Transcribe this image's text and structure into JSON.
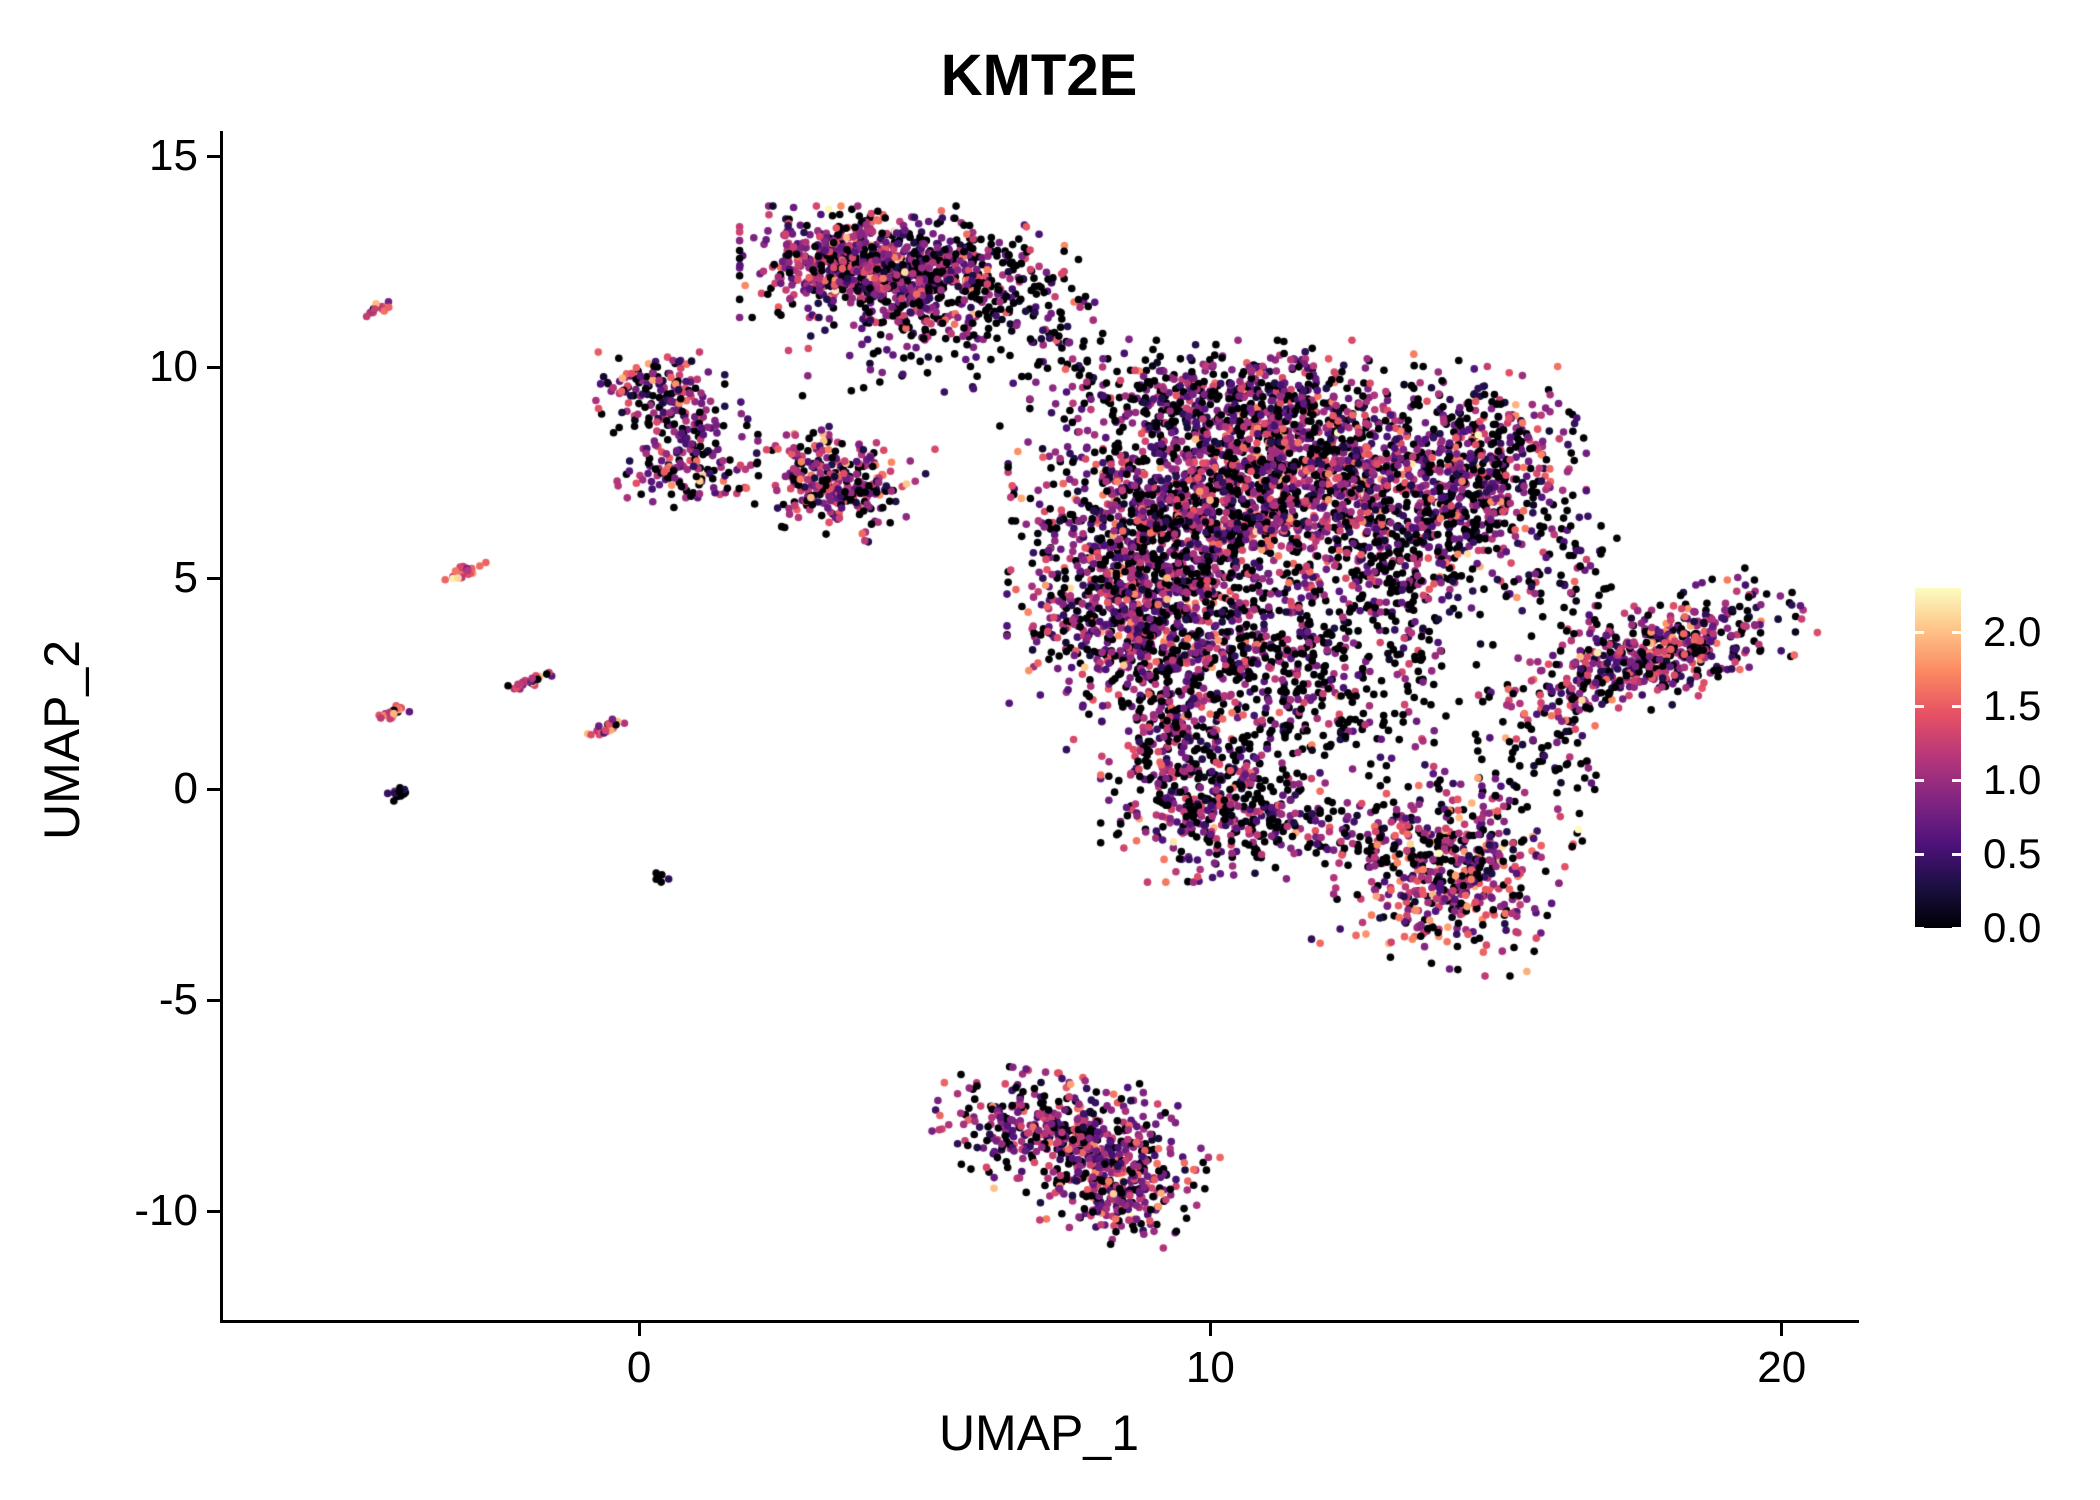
{
  "figure": {
    "background": "#ffffff",
    "axis_color": "#000000",
    "text_color": "#000000"
  },
  "chart_data": {
    "type": "scatter",
    "title": "KMT2E",
    "xlabel": "UMAP_1",
    "ylabel": "UMAP_2",
    "xlim": [
      -7.3,
      21.3
    ],
    "ylim": [
      -12.6,
      15.6
    ],
    "x_ticks": [
      0,
      10,
      20
    ],
    "y_ticks": [
      15,
      10,
      5,
      0,
      -5,
      -10
    ],
    "grid": false,
    "point_radius_px": 3.8,
    "seed": 20240711,
    "colorbar": {
      "position": "right",
      "tick_labels": [
        "2.0",
        "1.5",
        "1.0",
        "0.5",
        "0.0"
      ],
      "domain": [
        0,
        2.3
      ],
      "colormap": "magma",
      "stops": [
        "#000004",
        "#1c1044",
        "#4f127b",
        "#812581",
        "#b5367a",
        "#e55064",
        "#fb8761",
        "#fec287",
        "#fcfdbf"
      ]
    },
    "clusters": [
      {
        "name": "top-core",
        "n": 650,
        "cx": 3.8,
        "cy": 12.5,
        "sx": 0.85,
        "sy": 0.55,
        "rot": 0,
        "zero_frac": 0.22,
        "expr_mean": 1.0,
        "expr_sd": 0.45
      },
      {
        "name": "top-right",
        "n": 380,
        "cx": 5.4,
        "cy": 12.1,
        "sx": 0.85,
        "sy": 0.6,
        "rot": 0,
        "zero_frac": 0.4,
        "expr_mean": 0.85,
        "expr_sd": 0.4
      },
      {
        "name": "top-below-sparse",
        "n": 110,
        "cx": 4.6,
        "cy": 10.9,
        "sx": 0.9,
        "sy": 0.7,
        "rot": 0,
        "zero_frac": 0.5,
        "expr_mean": 0.8,
        "expr_sd": 0.4
      },
      {
        "name": "bridge-sparse",
        "n": 90,
        "cx": 7.2,
        "cy": 10.9,
        "sx": 0.8,
        "sy": 1.0,
        "rot": 0,
        "zero_frac": 0.6,
        "expr_mean": 0.7,
        "expr_sd": 0.4
      },
      {
        "name": "left-upper",
        "n": 140,
        "cx": 0.3,
        "cy": 9.4,
        "sx": 0.5,
        "sy": 0.4,
        "rot": 0,
        "zero_frac": 0.3,
        "expr_mean": 0.9,
        "expr_sd": 0.45
      },
      {
        "name": "left-upper2",
        "n": 60,
        "cx": 1.0,
        "cy": 8.6,
        "sx": 0.45,
        "sy": 0.4,
        "rot": 0,
        "zero_frac": 0.35,
        "expr_mean": 0.85,
        "expr_sd": 0.4
      },
      {
        "name": "left-lower",
        "n": 110,
        "cx": 0.8,
        "cy": 7.6,
        "sx": 0.5,
        "sy": 0.4,
        "rot": 0,
        "zero_frac": 0.3,
        "expr_mean": 0.95,
        "expr_sd": 0.45
      },
      {
        "name": "midleft-blob",
        "n": 300,
        "cx": 3.4,
        "cy": 7.3,
        "sx": 0.62,
        "sy": 0.55,
        "rot": -20,
        "zero_frac": 0.22,
        "expr_mean": 1.0,
        "expr_sd": 0.45
      },
      {
        "name": "main-core",
        "n": 1500,
        "cx": 11.6,
        "cy": 7.2,
        "sx": 1.45,
        "sy": 1.25,
        "rot": 0,
        "zero_frac": 0.3,
        "expr_mean": 0.95,
        "expr_sd": 0.45
      },
      {
        "name": "main-left",
        "n": 850,
        "cx": 9.1,
        "cy": 6.2,
        "sx": 1.1,
        "sy": 1.3,
        "rot": 0,
        "zero_frac": 0.35,
        "expr_mean": 0.9,
        "expr_sd": 0.45
      },
      {
        "name": "main-top",
        "n": 450,
        "cx": 10.2,
        "cy": 9.2,
        "sx": 1.4,
        "sy": 0.6,
        "rot": 0,
        "zero_frac": 0.4,
        "expr_mean": 0.85,
        "expr_sd": 0.4
      },
      {
        "name": "main-lowleft",
        "n": 520,
        "cx": 8.6,
        "cy": 4.2,
        "sx": 0.9,
        "sy": 0.9,
        "rot": 0,
        "zero_frac": 0.3,
        "expr_mean": 0.95,
        "expr_sd": 0.45
      },
      {
        "name": "main-lower",
        "n": 480,
        "cx": 10.6,
        "cy": 3.1,
        "sx": 1.3,
        "sy": 0.9,
        "rot": 0,
        "zero_frac": 0.45,
        "expr_mean": 0.8,
        "expr_sd": 0.4
      },
      {
        "name": "main-right-sparse",
        "n": 280,
        "cx": 13.7,
        "cy": 5.2,
        "sx": 0.8,
        "sy": 1.3,
        "rot": 0,
        "zero_frac": 0.55,
        "expr_mean": 0.75,
        "expr_sd": 0.4
      },
      {
        "name": "right-cluster",
        "n": 420,
        "cx": 14.9,
        "cy": 7.5,
        "sx": 0.7,
        "sy": 1.05,
        "rot": 0,
        "zero_frac": 0.4,
        "expr_mean": 0.85,
        "expr_sd": 0.45
      },
      {
        "name": "right-gap-sparse",
        "n": 70,
        "cx": 16.2,
        "cy": 5.2,
        "sx": 0.6,
        "sy": 0.8,
        "rot": 0,
        "zero_frac": 0.6,
        "expr_mean": 0.7,
        "expr_sd": 0.4
      },
      {
        "name": "far-right-band",
        "n": 560,
        "cx": 17.6,
        "cy": 3.1,
        "sx": 1.25,
        "sy": 0.5,
        "rot": 25,
        "zero_frac": 0.3,
        "expr_mean": 0.95,
        "expr_sd": 0.45
      },
      {
        "name": "low-mid",
        "n": 360,
        "cx": 10.0,
        "cy": -0.4,
        "sx": 0.8,
        "sy": 0.75,
        "rot": 0,
        "zero_frac": 0.35,
        "expr_mean": 0.9,
        "expr_sd": 0.45
      },
      {
        "name": "low-mid-upper",
        "n": 130,
        "cx": 9.3,
        "cy": 1.3,
        "sx": 0.5,
        "sy": 0.55,
        "rot": 0,
        "zero_frac": 0.35,
        "expr_mean": 0.9,
        "expr_sd": 0.4
      },
      {
        "name": "low-bridge",
        "n": 130,
        "cx": 12.2,
        "cy": -0.9,
        "sx": 1.1,
        "sy": 0.45,
        "rot": -10,
        "zero_frac": 0.5,
        "expr_mean": 0.8,
        "expr_sd": 0.4
      },
      {
        "name": "low-right",
        "n": 520,
        "cx": 14.2,
        "cy": -1.9,
        "sx": 0.8,
        "sy": 0.95,
        "rot": -15,
        "zero_frac": 0.28,
        "expr_mean": 1.0,
        "expr_sd": 0.45
      },
      {
        "name": "bottom-main",
        "n": 460,
        "cx": 7.4,
        "cy": -8.2,
        "sx": 0.95,
        "sy": 0.6,
        "rot": -10,
        "zero_frac": 0.3,
        "expr_mean": 0.95,
        "expr_sd": 0.45
      },
      {
        "name": "bottom-tail",
        "n": 260,
        "cx": 8.5,
        "cy": -9.4,
        "sx": 0.55,
        "sy": 0.6,
        "rot": -30,
        "zero_frac": 0.28,
        "expr_mean": 1.0,
        "expr_sd": 0.45
      },
      {
        "name": "mid-sparse",
        "n": 150,
        "cx": 11.8,
        "cy": 1.3,
        "sx": 1.2,
        "sy": 0.8,
        "rot": 0,
        "zero_frac": 0.6,
        "expr_mean": 0.75,
        "expr_sd": 0.4
      },
      {
        "name": "right-low-sparse",
        "n": 60,
        "cx": 15.7,
        "cy": 0.4,
        "sx": 0.7,
        "sy": 0.7,
        "rot": 0,
        "zero_frac": 0.6,
        "expr_mean": 0.7,
        "expr_sd": 0.4
      },
      {
        "name": "streak-1",
        "n": 14,
        "cx": -4.55,
        "cy": 11.4,
        "sx": 0.12,
        "sy": 0.05,
        "rot": 30,
        "zero_frac": 0.1,
        "expr_mean": 1.5,
        "expr_sd": 0.3
      },
      {
        "name": "streak-2",
        "n": 28,
        "cx": -3.05,
        "cy": 5.15,
        "sx": 0.18,
        "sy": 0.06,
        "rot": 30,
        "zero_frac": 0.08,
        "expr_mean": 1.45,
        "expr_sd": 0.3
      },
      {
        "name": "streak-3",
        "n": 26,
        "cx": -1.95,
        "cy": 2.55,
        "sx": 0.18,
        "sy": 0.06,
        "rot": 30,
        "zero_frac": 0.3,
        "expr_mean": 1.2,
        "expr_sd": 0.35
      },
      {
        "name": "streak-4",
        "n": 22,
        "cx": -4.3,
        "cy": 1.8,
        "sx": 0.16,
        "sy": 0.06,
        "rot": 30,
        "zero_frac": 0.08,
        "expr_mean": 1.5,
        "expr_sd": 0.3
      },
      {
        "name": "streak-5",
        "n": 22,
        "cx": -0.55,
        "cy": 1.45,
        "sx": 0.18,
        "sy": 0.06,
        "rot": 30,
        "zero_frac": 0.12,
        "expr_mean": 1.5,
        "expr_sd": 0.3
      },
      {
        "name": "streak-6",
        "n": 16,
        "cx": -4.2,
        "cy": -0.1,
        "sx": 0.1,
        "sy": 0.05,
        "rot": 30,
        "zero_frac": 0.7,
        "expr_mean": 0.6,
        "expr_sd": 0.3
      },
      {
        "name": "streak-7",
        "n": 7,
        "cx": 0.35,
        "cy": -2.1,
        "sx": 0.07,
        "sy": 0.05,
        "rot": 0,
        "zero_frac": 0.55,
        "expr_mean": 0.7,
        "expr_sd": 0.3
      }
    ]
  }
}
